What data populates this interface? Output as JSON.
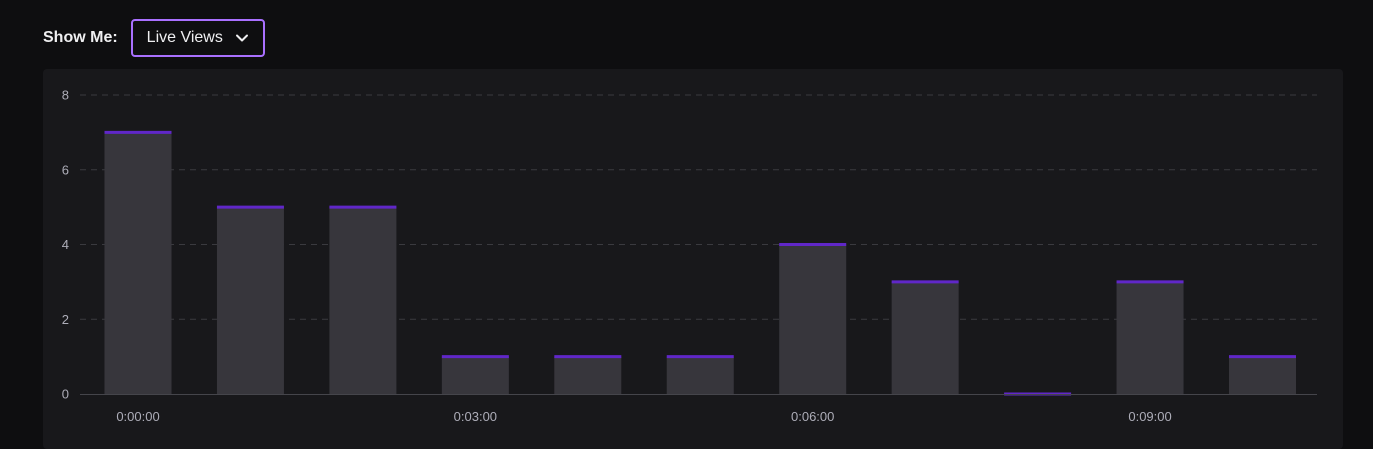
{
  "controls": {
    "show_me_label": "Show Me:",
    "selected_metric": "Live Views",
    "dropdown_icon": "chevron-down-icon"
  },
  "colors": {
    "accent": "#a970ff",
    "bar_fill": "#37363c",
    "bar_cap": "#6027c8",
    "grid": "#3a3a3f",
    "panel_bg": "#18181b",
    "page_bg": "#0e0e10"
  },
  "chart_data": {
    "type": "bar",
    "categories": [
      "0:00:00",
      "0:01:00",
      "0:02:00",
      "0:03:00",
      "0:04:00",
      "0:05:00",
      "0:06:00",
      "0:07:00",
      "0:08:00",
      "0:09:00",
      "0:10:00"
    ],
    "values": [
      7,
      5,
      5,
      1,
      1,
      1,
      4,
      3,
      0,
      3,
      1
    ],
    "x_tick_labels": [
      "0:00:00",
      "0:03:00",
      "0:06:00",
      "0:09:00"
    ],
    "x_tick_categories": [
      0,
      3,
      6,
      9
    ],
    "y_ticks": [
      "0",
      "2",
      "4",
      "6",
      "8"
    ],
    "ylim": [
      0,
      8
    ],
    "title": "",
    "xlabel": "",
    "ylabel": "",
    "grid": "horizontal dashed",
    "legend": "none"
  }
}
